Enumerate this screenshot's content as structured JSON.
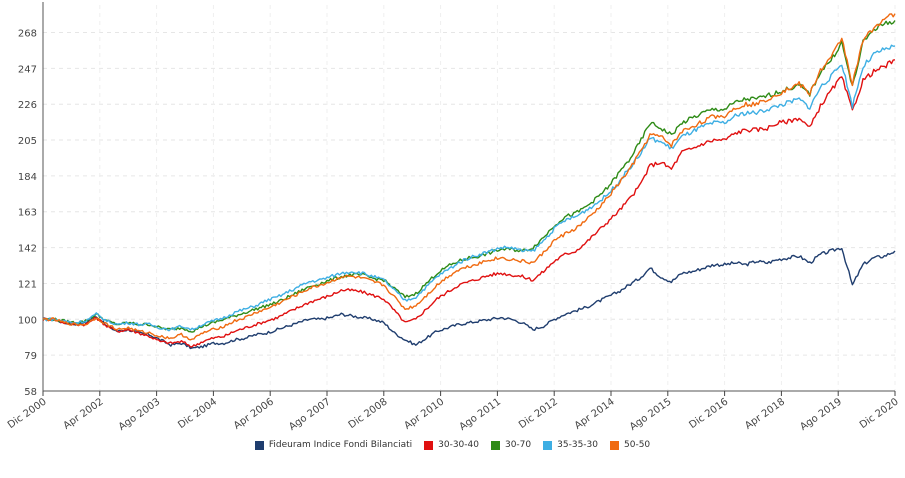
{
  "chart_data": {
    "type": "line",
    "title": "",
    "xlabel": "",
    "ylabel": "",
    "x_ticks": [
      "Dic 2000",
      "Apr 2002",
      "Ago 2003",
      "Dic 2004",
      "Apr 2006",
      "Ago 2007",
      "Dic 2008",
      "Apr 2010",
      "Ago 2011",
      "Dic 2012",
      "Apr 2014",
      "Ago 2015",
      "Dic 2016",
      "Apr 2018",
      "Ago 2019",
      "Dic 2020"
    ],
    "y_ticks": [
      58,
      79,
      100,
      121,
      142,
      163,
      184,
      205,
      226,
      247,
      268
    ],
    "ylim": [
      58,
      280
    ],
    "grid": true,
    "legend_position": "bottom",
    "series": [
      {
        "name": "Fideuram Indice Fondi Bilanciati",
        "color": "#1f3d6e",
        "values": [
          100,
          100,
          98,
          97,
          98,
          102,
          96,
          93,
          94,
          92,
          91,
          88,
          85,
          86,
          83,
          84,
          86,
          86,
          88,
          89,
          91,
          92,
          94,
          96,
          98,
          100,
          100,
          101,
          103,
          102,
          101,
          100,
          98,
          92,
          88,
          85,
          89,
          93,
          95,
          97,
          98,
          99,
          100,
          101,
          100,
          98,
          94,
          96,
          100,
          103,
          105,
          107,
          110,
          113,
          116,
          120,
          124,
          130,
          125,
          122,
          127,
          128,
          130,
          132,
          132,
          133,
          132,
          134,
          133,
          135,
          136,
          137,
          133,
          138,
          140,
          142,
          120,
          132,
          136,
          137,
          140
        ]
      },
      {
        "name": "30-30-40",
        "color": "#e01010",
        "values": [
          100,
          100,
          98,
          97,
          97,
          101,
          96,
          93,
          94,
          92,
          90,
          87,
          86,
          87,
          84,
          87,
          89,
          90,
          93,
          95,
          97,
          99,
          101,
          104,
          107,
          110,
          112,
          114,
          117,
          117,
          116,
          114,
          112,
          105,
          98,
          100,
          106,
          112,
          116,
          120,
          122,
          124,
          126,
          127,
          126,
          125,
          123,
          128,
          134,
          138,
          140,
          145,
          151,
          157,
          163,
          170,
          178,
          190,
          192,
          188,
          198,
          200,
          203,
          205,
          205,
          209,
          211,
          211,
          212,
          215,
          216,
          218,
          212,
          225,
          234,
          242,
          222,
          240,
          245,
          248,
          252
        ]
      },
      {
        "name": "30-70",
        "color": "#2e8b16",
        "values": [
          100,
          100,
          99,
          98,
          99,
          103,
          99,
          97,
          98,
          97,
          97,
          95,
          94,
          95,
          93,
          96,
          98,
          100,
          102,
          104,
          106,
          108,
          110,
          113,
          116,
          119,
          121,
          123,
          125,
          126,
          126,
          124,
          123,
          118,
          113,
          115,
          121,
          127,
          131,
          134,
          136,
          137,
          139,
          141,
          141,
          140,
          142,
          148,
          155,
          160,
          162,
          166,
          171,
          177,
          185,
          193,
          203,
          215,
          212,
          208,
          215,
          218,
          221,
          223,
          223,
          227,
          229,
          229,
          231,
          233,
          235,
          237,
          232,
          245,
          252,
          262,
          236,
          262,
          270,
          273,
          275
        ]
      },
      {
        "name": "35-35-30",
        "color": "#3daee3",
        "values": [
          100,
          100,
          99,
          98,
          99,
          103,
          99,
          97,
          98,
          97,
          97,
          95,
          94,
          96,
          94,
          97,
          99,
          101,
          104,
          106,
          108,
          111,
          113,
          116,
          119,
          122,
          123,
          125,
          127,
          128,
          127,
          125,
          123,
          117,
          111,
          113,
          119,
          125,
          129,
          133,
          136,
          138,
          140,
          142,
          142,
          140,
          140,
          146,
          153,
          158,
          160,
          164,
          168,
          173,
          180,
          188,
          196,
          206,
          204,
          200,
          207,
          210,
          213,
          215,
          215,
          219,
          221,
          221,
          223,
          225,
          227,
          229,
          224,
          236,
          242,
          250,
          225,
          248,
          255,
          258,
          260
        ]
      },
      {
        "name": "50-50",
        "color": "#f06a10",
        "values": [
          100,
          100,
          98,
          97,
          97,
          101,
          97,
          94,
          95,
          93,
          92,
          90,
          89,
          91,
          88,
          92,
          94,
          96,
          99,
          101,
          104,
          106,
          109,
          112,
          115,
          118,
          120,
          122,
          125,
          125,
          124,
          122,
          120,
          113,
          106,
          108,
          114,
          120,
          125,
          129,
          131,
          133,
          135,
          136,
          135,
          134,
          133,
          139,
          146,
          150,
          153,
          158,
          164,
          171,
          179,
          187,
          197,
          208,
          207,
          202,
          210,
          213,
          216,
          219,
          219,
          224,
          226,
          226,
          229,
          232,
          235,
          238,
          232,
          246,
          253,
          265,
          238,
          263,
          271,
          276,
          279
        ]
      }
    ]
  }
}
